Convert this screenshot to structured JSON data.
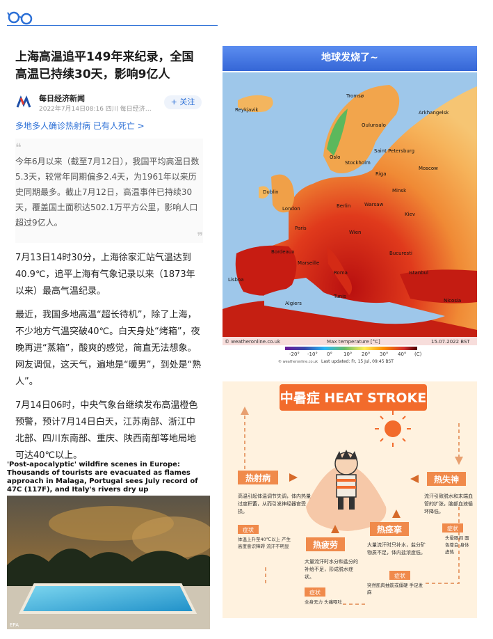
{
  "article": {
    "title": "上海高温追平149年来纪录，全国高温已持续30天，影响9亿人",
    "source_name": "每日经济新闻",
    "source_meta": "2022年7月14日08:16 四川 每日经济…",
    "follow_label": "+ 关注",
    "related_link": "多地多人确诊热射病 已有人死亡 >",
    "quote": "今年6月以来（截至7月12日），我国平均高温日数5.3天，较常年同期偏多2.4天，为1961年以来历史同期最多。截止7月12日，高温事件已持续30天，覆盖国土面积达502.1万平方公里，影响人口超过9亿人。",
    "paragraphs": [
      "7月13日14时30分，上海徐家汇站气温达到40.9℃，追平上海有气象记录以来（1873年以来）最高气温纪录。",
      "最近，我国多地高温“超长待机”，除了上海，不少地方气温突破40℃。白天身处“烤箱”，夜晚再进“蒸箱”，酸爽的感觉，简直无法想象。网友调侃，这天气，遍地是“暖男”，到处是“熟人”。",
      "7月14日06时，中央气象台继续发布高温橙色预警，预计7月14日白天，江苏南部、浙江中北部、四川东南部、重庆、陕西南部等地局地可达40℃以上。"
    ]
  },
  "news_card": {
    "headline": "'Post-apocalyptic' wildfire scenes in Europe: Thousands of tourists are evacuated as flames approach in Malaga, Portugal sees July record of 47C (117F), and Italy's rivers dry up",
    "credit": "EPA"
  },
  "map": {
    "banner": "地球发烧了~",
    "cities": [
      "Reykjavik",
      "Tromsø",
      "Arkhangelsk",
      "Oulunsalo",
      "Saint Petersburg",
      "Oslo",
      "Stockholm",
      "Riga",
      "Moscow",
      "Dublin",
      "Minsk",
      "London",
      "Berlin",
      "Warsaw",
      "Kiev",
      "Paris",
      "Wien",
      "Bordeaux",
      "Marseille",
      "Bucuresti",
      "Roma",
      "Lisboa",
      "Istanbul",
      "Algiers",
      "Tunis",
      "Nicosia"
    ],
    "watermark": "© weatheronline.co.uk",
    "scale_title": "Max temperature [°C]",
    "date": "15.07.2022 BST",
    "legend_ticks": [
      "-20°",
      "-10°",
      "0°",
      "10°",
      "20°",
      "30°",
      "40°",
      "(C)"
    ],
    "small_credit": "© weatheronline.co.uk",
    "last_updated": "Last updated: Fr, 15 Jul, 09:45 BST"
  },
  "infographic": {
    "title": "中暑症 HEAT STROKE",
    "heatshe": {
      "label": "热射病",
      "desc": "高温引起体温调节失调，体内热量过度积蓄，从而引发神经器官受损。",
      "sym_label": "症状",
      "sym": "体温上升至40℃以上 产生高度意识障碍 流汗不明显"
    },
    "heatshi": {
      "label": "热失神",
      "desc": "流汗引致脱水和末端血管的扩张，脑部血液循环降低。",
      "sym_label": "症状",
      "sym": "头晕眼闷 面色苍白 身体虚热"
    },
    "heatluan": {
      "label": "热痉挛",
      "desc": "大量流汗时只补水，盐分矿物质不足，体内盐浓度低。",
      "sym_label": "症状",
      "sym": "突然肌肉抽筋或僵硬 手足发麻"
    },
    "heatlao": {
      "label": "热疲劳",
      "desc": "大量流汗时水分和盐分的补给不足，形成脱水症状。",
      "sym_label": "症状",
      "sym": "全身无力 头痛呕吐"
    }
  }
}
